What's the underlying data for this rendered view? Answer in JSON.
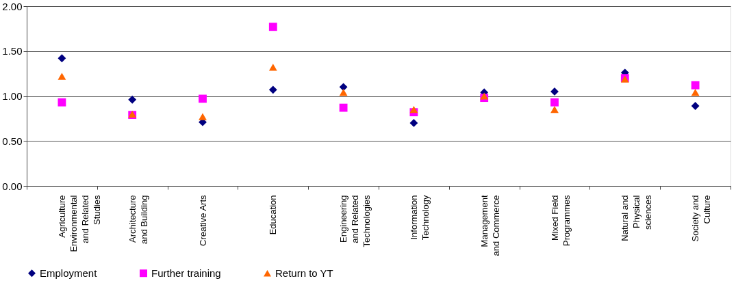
{
  "chart_data": {
    "type": "scatter",
    "categories": [
      "Agriculture Environmental and Related Studies",
      "Architecture and Building",
      "Creative Arts",
      "Education",
      "Engineering and Related Technologies",
      "Information Technology",
      "Management and Commerce",
      "Mixed Field Programmes",
      "Natural and Physical sciences",
      "Society and Culture"
    ],
    "series": [
      {
        "name": "Employment",
        "color": "#000080",
        "marker": "diamond",
        "values": [
          1.42,
          0.96,
          0.71,
          1.07,
          1.1,
          0.7,
          1.04,
          1.05,
          1.26,
          0.89
        ]
      },
      {
        "name": "Further training",
        "color": "#ff00ff",
        "marker": "square",
        "values": [
          0.93,
          0.79,
          0.97,
          1.77,
          0.87,
          0.82,
          0.98,
          0.93,
          1.2,
          1.12
        ]
      },
      {
        "name": "Return to YT",
        "color": "#ff6600",
        "marker": "triangle",
        "values": [
          1.22,
          0.8,
          0.77,
          1.32,
          1.04,
          0.85,
          1.0,
          0.85,
          1.19,
          1.04
        ]
      }
    ],
    "ylim": [
      0,
      2
    ],
    "yticks": [
      {
        "value": 0,
        "label": "0.00"
      },
      {
        "value": 0.5,
        "label": "0.50"
      },
      {
        "value": 1,
        "label": "1.00"
      },
      {
        "value": 1.5,
        "label": "1.50"
      },
      {
        "value": 2,
        "label": "2.00"
      }
    ],
    "grid": "y",
    "legend": "bottom"
  }
}
